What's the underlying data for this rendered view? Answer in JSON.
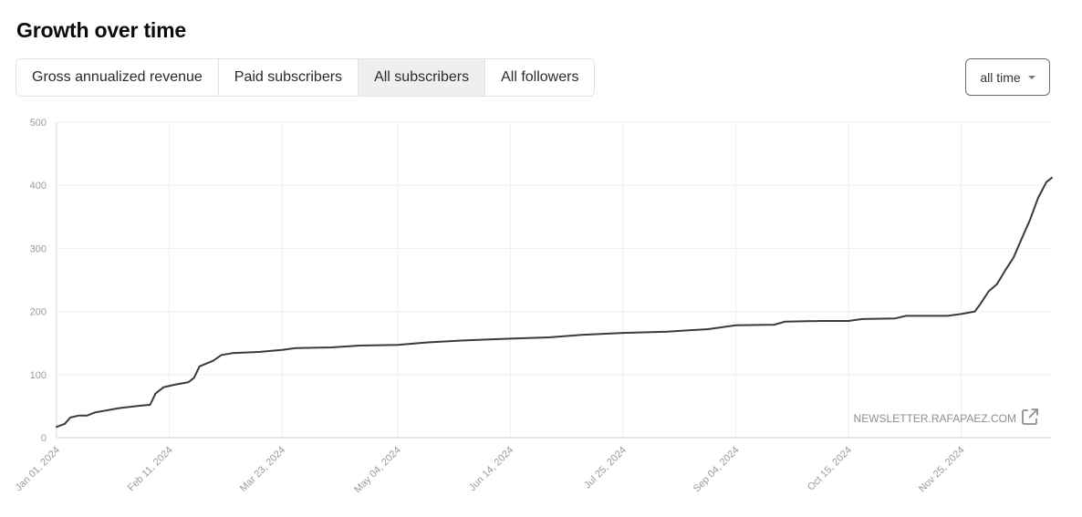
{
  "header": {
    "title": "Growth over time"
  },
  "tabs": [
    {
      "label": "Gross annualized revenue",
      "active": false
    },
    {
      "label": "Paid subscribers",
      "active": false
    },
    {
      "label": "All subscribers",
      "active": true
    },
    {
      "label": "All followers",
      "active": false
    }
  ],
  "range_select": {
    "value": "all time"
  },
  "watermark": {
    "text": "NEWSLETTER.RAFAPAEZ.COM",
    "icon": "external-link-icon"
  },
  "chart_data": {
    "type": "line",
    "title": "",
    "xlabel": "",
    "ylabel": "",
    "ylim": [
      0,
      500
    ],
    "yticks": [
      0,
      100,
      200,
      300,
      400,
      500
    ],
    "xlim": [
      "2024-01-01",
      "2024-12-28"
    ],
    "xticks": [
      "2024-01-01",
      "2024-02-11",
      "2024-03-23",
      "2024-05-04",
      "2024-06-14",
      "2024-07-25",
      "2024-09-04",
      "2024-10-15",
      "2024-11-25"
    ],
    "xtick_labels": [
      "Jan 01, 2024",
      "Feb 11, 2024",
      "Mar 23, 2024",
      "May 04, 2024",
      "Jun 14, 2024",
      "Jul 25, 2024",
      "Sep 04, 2024",
      "Oct 15, 2024",
      "Nov 25, 2024"
    ],
    "grid": true,
    "line_color": "#3a3a3a",
    "series": [
      {
        "name": "",
        "points": [
          [
            "2024-01-01",
            17
          ],
          [
            "2024-01-04",
            22
          ],
          [
            "2024-01-06",
            32
          ],
          [
            "2024-01-09",
            35
          ],
          [
            "2024-01-12",
            35
          ],
          [
            "2024-01-15",
            40
          ],
          [
            "2024-01-20",
            44
          ],
          [
            "2024-01-24",
            47
          ],
          [
            "2024-01-28",
            49
          ],
          [
            "2024-02-01",
            51
          ],
          [
            "2024-02-04",
            52
          ],
          [
            "2024-02-06",
            70
          ],
          [
            "2024-02-09",
            80
          ],
          [
            "2024-02-13",
            84
          ],
          [
            "2024-02-18",
            88
          ],
          [
            "2024-02-20",
            95
          ],
          [
            "2024-02-22",
            113
          ],
          [
            "2024-02-27",
            122
          ],
          [
            "2024-03-01",
            131
          ],
          [
            "2024-03-05",
            134
          ],
          [
            "2024-03-15",
            136
          ],
          [
            "2024-03-23",
            139
          ],
          [
            "2024-03-28",
            142
          ],
          [
            "2024-04-10",
            143
          ],
          [
            "2024-04-20",
            146
          ],
          [
            "2024-05-04",
            147
          ],
          [
            "2024-05-15",
            151
          ],
          [
            "2024-05-28",
            154
          ],
          [
            "2024-06-14",
            157
          ],
          [
            "2024-06-28",
            159
          ],
          [
            "2024-07-10",
            163
          ],
          [
            "2024-07-25",
            166
          ],
          [
            "2024-08-10",
            168
          ],
          [
            "2024-08-25",
            172
          ],
          [
            "2024-09-04",
            178
          ],
          [
            "2024-09-18",
            179
          ],
          [
            "2024-09-22",
            184
          ],
          [
            "2024-10-05",
            185
          ],
          [
            "2024-10-15",
            185
          ],
          [
            "2024-10-20",
            188
          ],
          [
            "2024-11-01",
            189
          ],
          [
            "2024-11-05",
            193
          ],
          [
            "2024-11-20",
            193
          ],
          [
            "2024-11-25",
            196
          ],
          [
            "2024-11-30",
            200
          ],
          [
            "2024-12-02",
            212
          ],
          [
            "2024-12-05",
            232
          ],
          [
            "2024-12-08",
            243
          ],
          [
            "2024-12-11",
            265
          ],
          [
            "2024-12-14",
            285
          ],
          [
            "2024-12-17",
            315
          ],
          [
            "2024-12-20",
            345
          ],
          [
            "2024-12-23",
            380
          ],
          [
            "2024-12-26",
            405
          ],
          [
            "2024-12-28",
            412
          ]
        ]
      }
    ]
  }
}
